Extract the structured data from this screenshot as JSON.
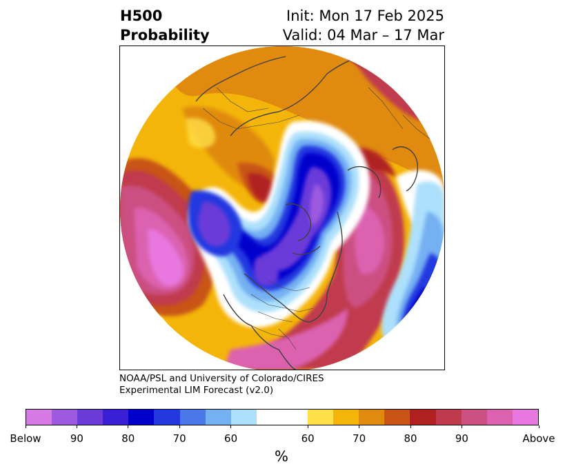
{
  "header": {
    "variable": "H500",
    "product": "Probability",
    "init": "Init: Mon 17 Feb 2025",
    "valid": "Valid: 04 Mar – 17 Mar"
  },
  "credit": {
    "line1": "NOAA/PSL and University of Colorado/CIRES",
    "line2": "Experimental LIM Forecast (v2.0)"
  },
  "colorbar": {
    "unit": "%",
    "ticks": [
      "Below",
      "90",
      "80",
      "70",
      "60",
      "60",
      "70",
      "80",
      "90",
      "Above"
    ],
    "below_colors": [
      "#d67ae6",
      "#9c5ae0",
      "#6a3bd9",
      "#3b1fd6",
      "#0000cd",
      "#2438e0",
      "#4a78e8",
      "#74b0f2",
      "#ade0fb"
    ],
    "neutral_color": "#ffffff",
    "above_colors": [
      "#ffe04a",
      "#f4b50a",
      "#e08a10",
      "#c85418",
      "#b02020",
      "#c03a4e",
      "#cc5082",
      "#dc62b0",
      "#e878e0"
    ]
  },
  "map": {
    "projection": "north-polar-stereographic",
    "features": [
      "coastlines",
      "country-borders",
      "state-borders"
    ]
  }
}
